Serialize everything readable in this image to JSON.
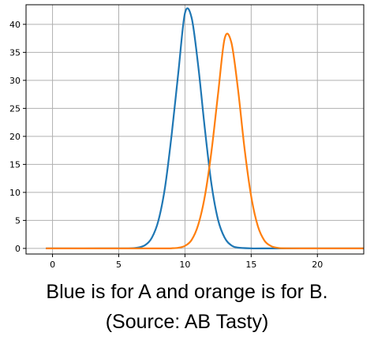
{
  "chart_data": {
    "type": "line",
    "title": "",
    "xlabel": "",
    "ylabel": "",
    "xlim": [
      -2,
      23.5
    ],
    "ylim": [
      -1,
      43.5
    ],
    "xticks": [
      0,
      5,
      10,
      15,
      20
    ],
    "yticks": [
      0,
      5,
      10,
      15,
      20,
      25,
      30,
      35,
      40
    ],
    "grid": true,
    "series": [
      {
        "color": "#1f77b4",
        "x": [
          -0.5,
          5,
          6,
          6.5,
          7,
          7.5,
          8,
          8.5,
          9,
          9.5,
          10,
          10.5,
          11,
          11.5,
          12,
          12.5,
          13,
          13.5,
          14,
          15,
          16,
          23.5
        ],
        "y": [
          0,
          0,
          0.04,
          0.17,
          0.6,
          1.9,
          5.0,
          11.0,
          20.4,
          31.4,
          42.0,
          41.2,
          32.6,
          21.4,
          11.5,
          5.1,
          1.9,
          0.55,
          0.14,
          0.01,
          0,
          0
        ]
      },
      {
        "color": "#ff7f0e",
        "x": [
          -0.5,
          8,
          9,
          9.5,
          10,
          10.5,
          11,
          11.5,
          12,
          12.5,
          13,
          13.5,
          14,
          14.5,
          15,
          15.5,
          16,
          16.5,
          17,
          18,
          23.5
        ],
        "y": [
          0,
          0,
          0.03,
          0.12,
          0.45,
          1.5,
          4.2,
          9.3,
          17.3,
          27.6,
          37.5,
          36.8,
          28.5,
          17.8,
          9.3,
          4.0,
          1.4,
          0.42,
          0.1,
          0.01,
          0
        ]
      }
    ]
  },
  "caption": {
    "line1": "Blue is for A and orange is for B.",
    "line2": "(Source: AB Tasty)"
  }
}
